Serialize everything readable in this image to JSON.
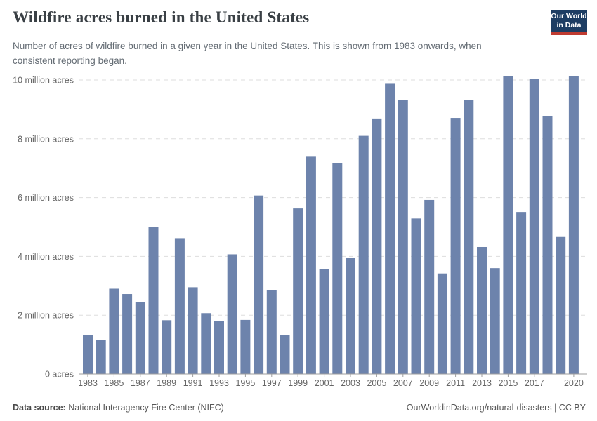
{
  "header": {
    "title": "Wildfire acres burned in the United States",
    "subtitle": "Number of acres of wildfire burned in a given year in the United States. This is shown from 1983 onwards, when consistent reporting began.",
    "logo": {
      "line1": "Our World",
      "line2": "in Data",
      "bg_color": "#1d3d63",
      "accent_color": "#bf3b31"
    }
  },
  "chart_data": {
    "type": "bar",
    "title": "Wildfire acres burned in the United States",
    "xlabel": "",
    "ylabel": "",
    "unit": "million acres",
    "categories": [
      1983,
      1984,
      1985,
      1986,
      1987,
      1988,
      1989,
      1990,
      1991,
      1992,
      1993,
      1994,
      1995,
      1996,
      1997,
      1998,
      1999,
      2000,
      2001,
      2002,
      2003,
      2004,
      2005,
      2006,
      2007,
      2008,
      2009,
      2010,
      2011,
      2012,
      2013,
      2014,
      2015,
      2016,
      2017,
      2018,
      2019,
      2020
    ],
    "values": [
      1.32,
      1.15,
      2.9,
      2.72,
      2.45,
      5.01,
      1.83,
      4.62,
      2.95,
      2.07,
      1.8,
      4.07,
      1.84,
      6.07,
      2.86,
      1.33,
      5.63,
      7.39,
      3.57,
      7.18,
      3.96,
      8.1,
      8.69,
      9.87,
      9.33,
      5.29,
      5.92,
      3.42,
      8.71,
      9.33,
      4.32,
      3.6,
      10.13,
      5.51,
      10.03,
      8.77,
      4.66,
      10.12
    ],
    "ylim": [
      0,
      10.2
    ],
    "yticks": [
      {
        "value": 0,
        "label": "0 acres"
      },
      {
        "value": 2,
        "label": "2 million acres"
      },
      {
        "value": 4,
        "label": "4 million acres"
      },
      {
        "value": 6,
        "label": "6 million acres"
      },
      {
        "value": 8,
        "label": "8 million acres"
      },
      {
        "value": 10,
        "label": "10 million acres"
      }
    ],
    "xtick_labels": [
      1983,
      1985,
      1987,
      1989,
      1991,
      1993,
      1995,
      1997,
      1999,
      2001,
      2003,
      2005,
      2007,
      2009,
      2011,
      2013,
      2015,
      2017,
      2020
    ],
    "bar_color": "#6d83ac",
    "grid_color": "#dddddd",
    "axis_color": "#9e9e9e",
    "tick_text_color": "#666666",
    "grid": "horizontal-dashed",
    "legend": "none"
  },
  "footer": {
    "source_label": "Data source:",
    "source_text": "National Interagency Fire Center (NIFC)",
    "right_text": "OurWorldinData.org/natural-disasters | CC BY"
  }
}
